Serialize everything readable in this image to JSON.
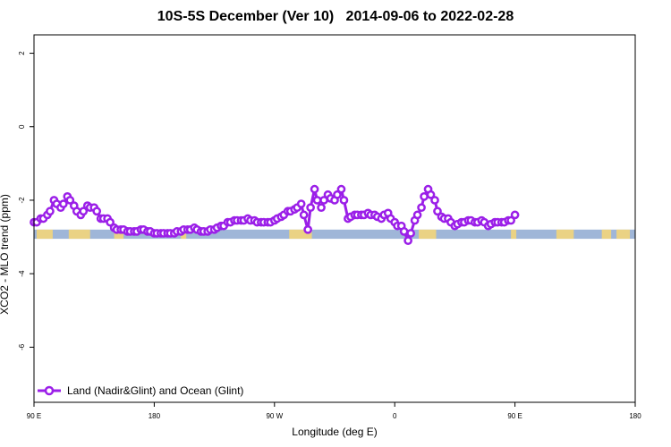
{
  "chart_data": {
    "type": "line",
    "title": "10S-5S December (Ver 10)   2014-09-06 to 2022-02-28",
    "xlabel": "Longitude (deg E)",
    "ylabel": "XCO2 - MLO trend (ppm)",
    "xlim": [
      90,
      450
    ],
    "ylim": [
      -7.5,
      2.5
    ],
    "x_ticks": [
      {
        "value": 90,
        "label": "90 E"
      },
      {
        "value": 180,
        "label": "180"
      },
      {
        "value": 270,
        "label": "90 W"
      },
      {
        "value": 360,
        "label": "0"
      },
      {
        "value": 450,
        "label": "90 E"
      },
      {
        "value": 540,
        "label": "180"
      }
    ],
    "y_ticks": [
      {
        "value": 2,
        "label": "2"
      },
      {
        "value": 0,
        "label": "0"
      },
      {
        "value": -2,
        "label": "-2"
      },
      {
        "value": -4,
        "label": "-4"
      },
      {
        "value": -6,
        "label": "-6"
      }
    ],
    "grid": false,
    "legend_position": "bottom-left",
    "series": [
      {
        "name": "Land (Nadir&Glint) and Ocean (Glint)",
        "color": "#9b1fe8",
        "x": [
          90,
          92,
          95,
          97,
          100,
          102,
          105,
          107,
          110,
          112,
          115,
          117,
          120,
          122,
          125,
          127,
          130,
          132,
          135,
          137,
          140,
          142,
          145,
          147,
          150,
          152,
          155,
          157,
          160,
          162,
          165,
          167,
          170,
          172,
          175,
          177,
          180,
          182,
          185,
          187,
          190,
          192,
          195,
          197,
          200,
          202,
          205,
          207,
          210,
          212,
          215,
          217,
          220,
          222,
          225,
          227,
          230,
          232,
          235,
          237,
          240,
          242,
          245,
          247,
          250,
          252,
          255,
          257,
          260,
          262,
          265,
          267,
          270,
          272,
          275,
          277,
          280,
          282,
          285,
          287,
          290,
          292,
          295,
          297,
          300,
          302,
          305,
          307,
          310,
          312,
          315,
          317,
          320,
          322,
          325,
          327,
          330,
          332,
          335,
          337,
          340,
          342,
          345,
          347,
          350,
          352,
          355,
          357,
          360,
          362,
          365,
          367,
          370,
          372,
          375,
          377,
          380,
          382,
          385,
          387,
          390,
          392,
          395,
          397,
          400,
          402,
          405,
          407,
          410,
          412,
          415,
          417,
          420,
          422,
          425,
          427,
          430,
          432,
          435,
          437,
          440,
          442,
          445,
          447,
          450
        ],
        "y": [
          -2.6,
          -2.6,
          -2.5,
          -2.5,
          -2.4,
          -2.3,
          -2.0,
          -2.1,
          -2.2,
          -2.1,
          -1.9,
          -2.0,
          -2.15,
          -2.3,
          -2.4,
          -2.3,
          -2.15,
          -2.2,
          -2.2,
          -2.3,
          -2.5,
          -2.5,
          -2.5,
          -2.6,
          -2.75,
          -2.8,
          -2.8,
          -2.8,
          -2.85,
          -2.85,
          -2.85,
          -2.85,
          -2.8,
          -2.8,
          -2.85,
          -2.85,
          -2.9,
          -2.9,
          -2.9,
          -2.9,
          -2.9,
          -2.9,
          -2.9,
          -2.85,
          -2.85,
          -2.8,
          -2.8,
          -2.8,
          -2.75,
          -2.8,
          -2.85,
          -2.85,
          -2.85,
          -2.8,
          -2.8,
          -2.75,
          -2.7,
          -2.7,
          -2.6,
          -2.6,
          -2.55,
          -2.55,
          -2.55,
          -2.55,
          -2.5,
          -2.55,
          -2.55,
          -2.6,
          -2.6,
          -2.6,
          -2.6,
          -2.6,
          -2.55,
          -2.5,
          -2.45,
          -2.4,
          -2.3,
          -2.3,
          -2.25,
          -2.2,
          -2.1,
          -2.4,
          -2.8,
          -2.2,
          -1.7,
          -2.0,
          -2.2,
          -2.0,
          -1.85,
          -1.95,
          -2.0,
          -1.85,
          -1.7,
          -2.0,
          -2.5,
          -2.45,
          -2.4,
          -2.4,
          -2.4,
          -2.4,
          -2.35,
          -2.4,
          -2.4,
          -2.45,
          -2.5,
          -2.4,
          -2.35,
          -2.5,
          -2.6,
          -2.7,
          -2.7,
          -2.85,
          -3.1,
          -2.9,
          -2.55,
          -2.4,
          -2.2,
          -1.9,
          -1.7,
          -1.85,
          -2.0,
          -2.3,
          -2.45,
          -2.5,
          -2.5,
          -2.6,
          -2.7,
          -2.65,
          -2.6,
          -2.6,
          -2.55,
          -2.55,
          -2.6,
          -2.6,
          -2.55,
          -2.6,
          -2.7,
          -2.65,
          -2.6,
          -2.6,
          -2.6,
          -2.6,
          -2.55,
          -2.55,
          -2.4
        ]
      }
    ],
    "map_strip": {
      "y_range": [
        -3.05,
        -2.8
      ],
      "ocean_color": "#9fb6d8",
      "land_color": "#f7d775"
    }
  }
}
